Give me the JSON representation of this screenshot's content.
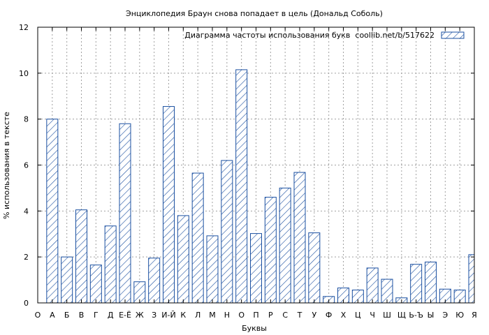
{
  "chart_data": {
    "type": "bar",
    "title": "Энциклопедия Браун снова попадает в цель (Дональд Соболь)",
    "xlabel": "Буквы",
    "ylabel": "% использования в тексте",
    "legend_label": "Диаграмма частоты использования букв  coollib.net/b/517622",
    "legend_position": "top-right",
    "grid": true,
    "ylim": [
      0,
      12
    ],
    "yticks": [
      0,
      2,
      4,
      6,
      8,
      10,
      12
    ],
    "categories": [
      "О",
      "А",
      "Б",
      "В",
      "Г",
      "Д",
      "Е-Ё",
      "Ж",
      "З",
      "И-Й",
      "К",
      "Л",
      "М",
      "Н",
      "О",
      "П",
      "Р",
      "С",
      "Т",
      "У",
      "Ф",
      "Х",
      "Ц",
      "Ч",
      "Ш",
      "Щ",
      "Ь-Ъ",
      "Ы",
      "Э",
      "Ю",
      "Я"
    ],
    "values": [
      null,
      8.0,
      2.0,
      4.05,
      1.65,
      3.35,
      7.8,
      0.92,
      1.95,
      8.55,
      3.8,
      5.65,
      2.92,
      6.2,
      10.15,
      3.02,
      4.6,
      5.0,
      5.68,
      3.05,
      0.28,
      0.65,
      0.56,
      1.52,
      1.03,
      0.22,
      1.68,
      1.78,
      0.6,
      0.56,
      2.1
    ],
    "colors": {
      "bar": "#1a4fa0",
      "hatch": "#1a4fa0",
      "grid": "#a0a0a0",
      "frame": "#000000"
    }
  }
}
